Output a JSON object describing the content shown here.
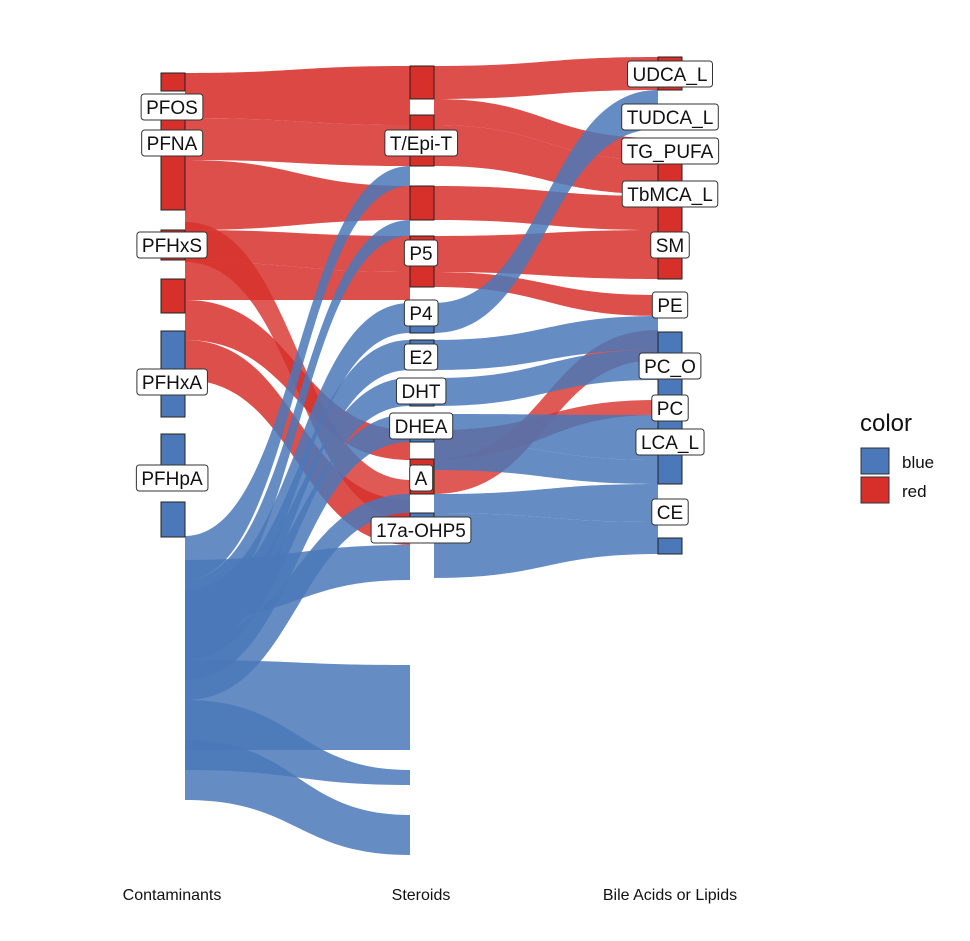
{
  "chart_data": {
    "type": "alluvial",
    "axes": [
      "Contaminants",
      "Steroids",
      "Bile Acids or Lipids"
    ],
    "legend": {
      "title": "color",
      "position": "right",
      "items": [
        {
          "label": "blue",
          "color": "#4a78b8"
        },
        {
          "label": "red",
          "color": "#d7302a"
        }
      ]
    },
    "colors": {
      "blue": "#4a78b8",
      "red": "#d7302a"
    },
    "nodes": {
      "Contaminants": [
        "PFOS",
        "PFNA",
        "PFHxS",
        "PFHxA",
        "PFHpA"
      ],
      "Steroids": [
        "T/Epi-T",
        "P5",
        "P4",
        "E2",
        "DHT",
        "DHEA",
        "A",
        "17a-OHP5"
      ],
      "Bile Acids or Lipids": [
        "UDCA_L",
        "TUDCA_L",
        "TG_PUFA",
        "TbMCA_L",
        "SM",
        "PE",
        "PC_O",
        "PC",
        "LCA_L",
        "CE"
      ]
    }
  }
}
